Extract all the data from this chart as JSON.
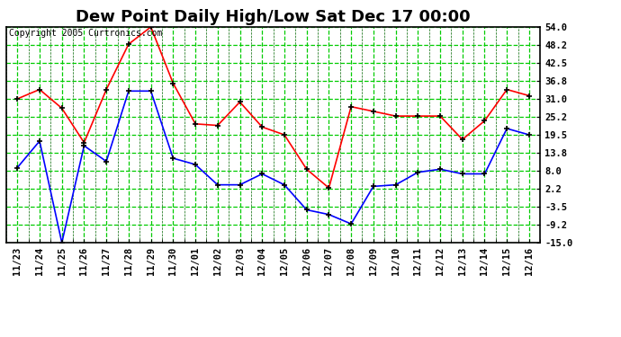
{
  "title": "Dew Point Daily High/Low Sat Dec 17 00:00",
  "copyright": "Copyright 2005 Curtronics.com",
  "x_labels": [
    "11/23",
    "11/24",
    "11/25",
    "11/26",
    "11/27",
    "11/28",
    "11/29",
    "11/30",
    "12/01",
    "12/02",
    "12/03",
    "12/04",
    "12/05",
    "12/06",
    "12/07",
    "12/08",
    "12/09",
    "12/10",
    "12/11",
    "12/12",
    "12/13",
    "12/14",
    "12/15",
    "12/16"
  ],
  "high_values": [
    31.0,
    34.0,
    28.0,
    17.0,
    34.0,
    48.5,
    54.0,
    36.0,
    23.0,
    22.5,
    30.0,
    22.0,
    19.5,
    8.5,
    2.5,
    28.5,
    27.0,
    25.5,
    25.5,
    25.5,
    18.0,
    24.0,
    34.0,
    32.0
  ],
  "low_values": [
    9.0,
    17.5,
    -15.0,
    16.0,
    11.0,
    33.5,
    33.5,
    12.0,
    10.0,
    3.5,
    3.5,
    7.0,
    3.5,
    -4.5,
    -6.0,
    -9.0,
    3.0,
    3.5,
    7.5,
    8.5,
    7.0,
    7.0,
    21.5,
    19.5
  ],
  "high_color": "#ff0000",
  "low_color": "#0000ff",
  "bg_color": "#ffffff",
  "plot_bg_color": "#ffffff",
  "grid_major_color": "#00cc00",
  "grid_minor_color": "#006600",
  "border_color": "#000000",
  "y_ticks": [
    -15.0,
    -9.2,
    -3.5,
    2.2,
    8.0,
    13.8,
    19.5,
    25.2,
    31.0,
    36.8,
    42.5,
    48.2,
    54.0
  ],
  "ylim": [
    -15.0,
    54.0
  ],
  "marker": "+",
  "marker_color": "#000000",
  "linewidth": 1.2,
  "markersize": 5,
  "title_fontsize": 13,
  "tick_fontsize": 7.5,
  "copyright_fontsize": 7
}
